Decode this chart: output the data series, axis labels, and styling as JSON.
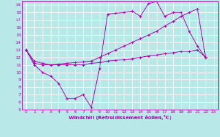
{
  "xlabel": "Windchill (Refroidissement éolien,°C)",
  "xlim": [
    -0.5,
    23.5
  ],
  "ylim": [
    5,
    19.5
  ],
  "xticks": [
    0,
    1,
    2,
    3,
    4,
    5,
    6,
    7,
    8,
    9,
    10,
    11,
    12,
    13,
    14,
    15,
    16,
    17,
    18,
    19,
    20,
    21,
    22,
    23
  ],
  "yticks": [
    5,
    6,
    7,
    8,
    9,
    10,
    11,
    12,
    13,
    14,
    15,
    16,
    17,
    18,
    19
  ],
  "bg_color": "#b8e8e8",
  "grid_color": "#ffffff",
  "line_color": "#aa00aa",
  "line1_x": [
    0,
    1,
    2,
    3,
    4,
    5,
    6,
    7,
    8,
    9,
    10,
    11,
    12,
    13,
    14,
    15,
    16,
    17,
    18,
    19,
    20,
    21,
    22
  ],
  "line1_y": [
    13,
    11,
    10,
    9.5,
    8.5,
    6.5,
    6.5,
    7.0,
    5.3,
    10.5,
    17.8,
    17.9,
    18.0,
    18.2,
    17.5,
    19.2,
    19.5,
    17.5,
    18.0,
    18.0,
    15.5,
    13.5,
    12.0
  ],
  "line2_x": [
    0,
    1,
    2,
    3,
    4,
    5,
    6,
    7,
    8,
    9,
    10,
    11,
    12,
    13,
    14,
    15,
    16,
    17,
    18,
    19,
    20,
    21,
    22
  ],
  "line2_y": [
    13,
    11.2,
    11.0,
    11.0,
    11.0,
    11.0,
    11.0,
    11.0,
    11.2,
    11.3,
    11.5,
    11.6,
    11.7,
    11.8,
    12.0,
    12.2,
    12.3,
    12.5,
    12.6,
    12.8,
    12.8,
    13.0,
    12.0
  ],
  "line3_x": [
    0,
    1,
    2,
    3,
    4,
    5,
    6,
    7,
    8,
    9,
    10,
    11,
    12,
    13,
    14,
    15,
    16,
    17,
    18,
    19,
    20,
    21,
    22
  ],
  "line3_y": [
    13,
    11.5,
    11.2,
    11.0,
    11.1,
    11.2,
    11.3,
    11.4,
    11.5,
    12.0,
    12.5,
    13.0,
    13.5,
    14.0,
    14.5,
    15.0,
    15.5,
    16.2,
    16.8,
    17.5,
    18.0,
    18.5,
    12.0
  ]
}
